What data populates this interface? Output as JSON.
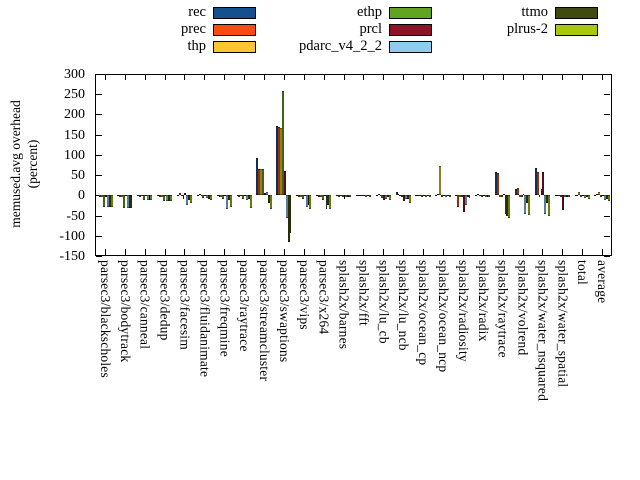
{
  "chart_data": {
    "type": "bar",
    "title": "",
    "ylabel": "memused.avg overhead (percent)",
    "ylabel_lines": [
      "memused.avg overhead",
      "(percent)"
    ],
    "ylim": [
      -150,
      300
    ],
    "yticks": [
      300,
      250,
      200,
      150,
      100,
      50,
      0,
      -50,
      -100,
      -150
    ],
    "grid": false,
    "legend_position": "top",
    "legend_columns": [
      [
        0,
        1,
        2
      ],
      [
        3,
        4,
        5
      ],
      [
        6,
        7
      ]
    ],
    "categories": [
      "parsec3/blackscholes",
      "parsec3/bodytrack",
      "parsec3/canneal",
      "parsec3/dedup",
      "parsec3/facesim",
      "parsec3/fluidanimate",
      "parsec3/freqmine",
      "parsec3/raytrace",
      "parsec3/streamcluster",
      "parsec3/swaptions",
      "parsec3/vips",
      "parsec3/x264",
      "splash2x/barnes",
      "splash2x/fft",
      "splash2x/lu_cb",
      "splash2x/lu_ncb",
      "splash2x/ocean_cp",
      "splash2x/ocean_ncp",
      "splash2x/radiosity",
      "splash2x/radix",
      "splash2x/raytrace",
      "splash2x/volrend",
      "splash2x/water_nsquared",
      "splash2x/water_spatial",
      "total",
      "average"
    ],
    "series": [
      {
        "name": "rec",
        "color": "#14508e",
        "values": [
          -2,
          -2,
          -1,
          -2,
          2,
          1,
          -2,
          -2,
          93,
          172,
          -2,
          -2,
          -1,
          1,
          1,
          8,
          -1,
          2,
          -2,
          2,
          58,
          15,
          68,
          -1,
          1,
          2
        ]
      },
      {
        "name": "prec",
        "color": "#f94d10",
        "values": [
          -5,
          -5,
          -3,
          -4,
          6,
          4,
          -4,
          -3,
          64,
          170,
          -4,
          -4,
          -3,
          2,
          4,
          3,
          -2,
          3,
          -28,
          3,
          55,
          18,
          58,
          -2,
          2,
          3
        ]
      },
      {
        "name": "thp",
        "color": "#fdc530",
        "values": [
          -3,
          -3,
          -2,
          -3,
          -2,
          -2,
          -3,
          -2,
          64,
          166,
          -3,
          -3,
          -2,
          -1,
          -2,
          -2,
          -1,
          72,
          -3,
          -2,
          -3,
          -3,
          -3,
          -2,
          8,
          8
        ]
      },
      {
        "name": "ethp",
        "color": "#60a41f",
        "values": [
          -30,
          -32,
          -12,
          -15,
          -8,
          -6,
          -10,
          -8,
          64,
          258,
          -10,
          -12,
          -4,
          -2,
          -6,
          -5,
          -3,
          -4,
          -4,
          -3,
          -5,
          -5,
          15,
          -3,
          -4,
          -5
        ]
      },
      {
        "name": "prcl",
        "color": "#8c1228",
        "values": [
          -3,
          -2,
          -2,
          -2,
          5,
          2,
          -2,
          -2,
          5,
          60,
          -2,
          -2,
          -8,
          1,
          -12,
          -15,
          -1,
          1,
          -40,
          2,
          3,
          3,
          57,
          -36,
          1,
          2
        ]
      },
      {
        "name": "pdarc_v4_2_2",
        "color": "#8fccf2",
        "values": [
          -30,
          -32,
          -12,
          -15,
          -25,
          -6,
          -35,
          -12,
          9,
          -55,
          -28,
          -35,
          -4,
          -3,
          -10,
          -10,
          -3,
          -5,
          -25,
          -4,
          -45,
          -45,
          -45,
          -4,
          -6,
          -12
        ]
      },
      {
        "name": "ttmo",
        "color": "#3e4a10",
        "values": [
          -30,
          -32,
          -12,
          -15,
          -12,
          -8,
          -12,
          -10,
          -20,
          -115,
          -25,
          -25,
          -3,
          -2,
          -5,
          -8,
          -2,
          -2,
          -4,
          -3,
          -50,
          -20,
          -20,
          -3,
          -4,
          -8
        ]
      },
      {
        "name": "plrus-2",
        "color": "#a8c80f",
        "values": [
          -30,
          -32,
          -12,
          -15,
          -20,
          -12,
          -30,
          -32,
          -35,
          -92,
          -35,
          -33,
          -4,
          -3,
          -12,
          -18,
          -3,
          -5,
          -6,
          -5,
          -57,
          -48,
          -50,
          -5,
          -8,
          -14
        ]
      }
    ]
  }
}
